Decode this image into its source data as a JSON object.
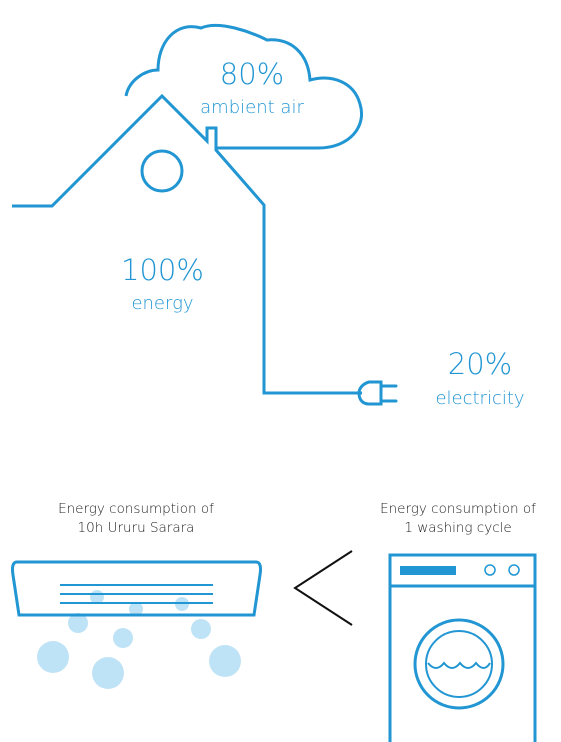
{
  "colors": {
    "line": "#2196d3",
    "text_blue": "#2196d3",
    "bubble": "#bfe3f6",
    "dark": "#111111"
  },
  "heat_pump": {
    "ambient_air": {
      "value": "80%",
      "label": "ambient air"
    },
    "energy": {
      "value": "100%",
      "label": "energy"
    },
    "electricity": {
      "value": "20%",
      "label": "electricity"
    }
  },
  "comparison": {
    "left_caption": {
      "line1": "Energy consumption of",
      "line2": "10h Ururu Sarara"
    },
    "right_caption": {
      "line1": "Energy consumption of",
      "line2": "1 washing cycle"
    },
    "symbol": "less-than-sign",
    "left_icon": "air-conditioner-icon",
    "right_icon": "washing-machine-icon"
  }
}
